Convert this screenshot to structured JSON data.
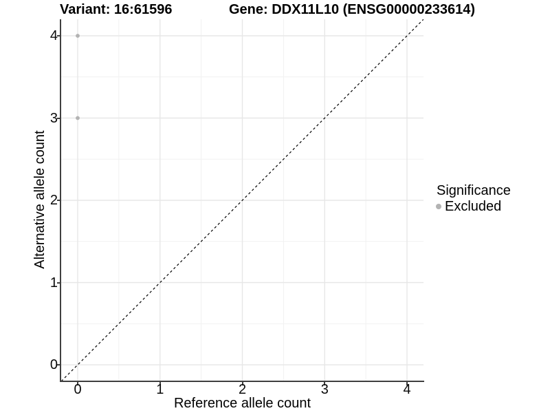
{
  "header": {
    "variant_title": "Variant: 16:61596",
    "gene_title": "Gene: DDX11L10 (ENSG00000233614)"
  },
  "axes": {
    "x_label": "Reference allele count",
    "y_label": "Alternative allele count"
  },
  "legend": {
    "title": "Significance",
    "items": [
      {
        "label": "Excluded",
        "color": "#b3b3b3"
      }
    ]
  },
  "colors": {
    "axis_line": "#3f3f3f",
    "grid_major": "#e7e7e7",
    "grid_minor": "#f1f1f1",
    "point": "#b3b3b3",
    "reference_line": "#000000",
    "background": "#ffffff"
  },
  "chart_data": {
    "type": "scatter",
    "title": "Variant: 16:61596 — Gene: DDX11L10 (ENSG00000233614)",
    "xlabel": "Reference allele count",
    "ylabel": "Alternative allele count",
    "xlim": [
      -0.2,
      4.2
    ],
    "ylim": [
      -0.2,
      4.2
    ],
    "x_ticks": [
      0,
      1,
      2,
      3,
      4
    ],
    "y_ticks": [
      0,
      1,
      2,
      3,
      4
    ],
    "x_minor_ticks": [
      0.5,
      1.5,
      2.5,
      3.5
    ],
    "y_minor_ticks": [
      0.5,
      1.5,
      2.5,
      3.5
    ],
    "grid": true,
    "legend_position": "right",
    "series": [
      {
        "name": "Excluded",
        "color": "#b3b3b3",
        "points": [
          {
            "x": 0,
            "y": 4
          },
          {
            "x": 0,
            "y": 3
          }
        ]
      }
    ],
    "reference_line": {
      "type": "identity_y_equals_x",
      "style": "dashed",
      "color": "#000000"
    }
  }
}
